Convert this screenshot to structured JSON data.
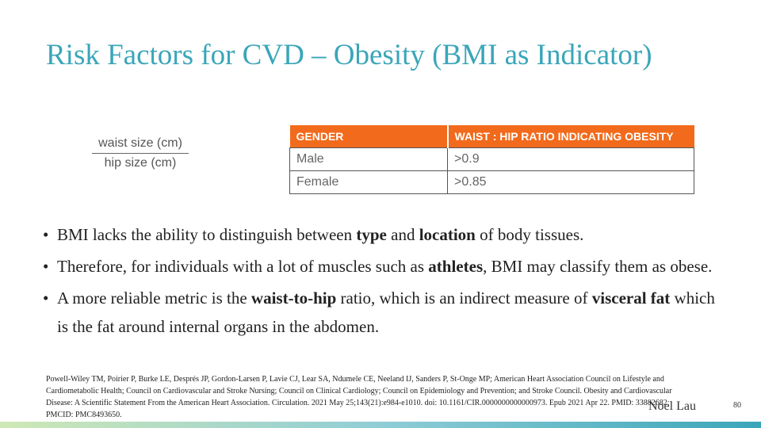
{
  "slide": {
    "title": "Risk Factors for CVD – Obesity (BMI as Indicator)",
    "page_number": "80",
    "author": "Noel Lau"
  },
  "formula": {
    "numerator": "waist size (cm)",
    "denominator": "hip size (cm)"
  },
  "table": {
    "headers": [
      "GENDER",
      "WAIST : HIP RATIO INDICATING OBESITY"
    ],
    "rows": [
      [
        "Male",
        ">0.9"
      ],
      [
        "Female",
        ">0.85"
      ]
    ]
  },
  "bullets": [
    {
      "parts": [
        [
          "BMI lacks the ability to distinguish between ",
          false
        ],
        [
          "type",
          true
        ],
        [
          " and ",
          false
        ],
        [
          "location",
          true
        ],
        [
          " of body tissues.",
          false
        ]
      ]
    },
    {
      "parts": [
        [
          "Therefore, for individuals with a lot of muscles such as ",
          false
        ],
        [
          "athletes",
          true
        ],
        [
          ", BMI may classify them as obese.",
          false
        ]
      ]
    },
    {
      "parts": [
        [
          "A more reliable metric is the ",
          false
        ],
        [
          "waist-to-hip",
          true
        ],
        [
          " ratio, which is an indirect measure of ",
          false
        ],
        [
          "visceral fat",
          true
        ],
        [
          " which is the fat around internal organs in the abdomen.",
          false
        ]
      ]
    }
  ],
  "reference": "Powell-Wiley TM, Poirier P, Burke LE, Després JP, Gordon-Larsen P, Lavie CJ, Lear SA, Ndumele CE, Neeland IJ, Sanders P, St-Onge MP; American Heart Association Council on Lifestyle and Cardiometabolic Health; Council on Cardiovascular and Stroke Nursing; Council on Clinical Cardiology; Council on Epidemiology and Prevention; and Stroke Council. Obesity and Cardiovascular Disease: A Scientific Statement From the American Heart Association. Circulation. 2021 May 25;143(21):e984-e1010. doi: 10.1161/CIR.0000000000000973. Epub 2021 Apr 22. PMID: 33882682; PMCID: PMC8493650.",
  "colors": {
    "title": "#3aa6b9",
    "table_header": "#f26a1b"
  }
}
